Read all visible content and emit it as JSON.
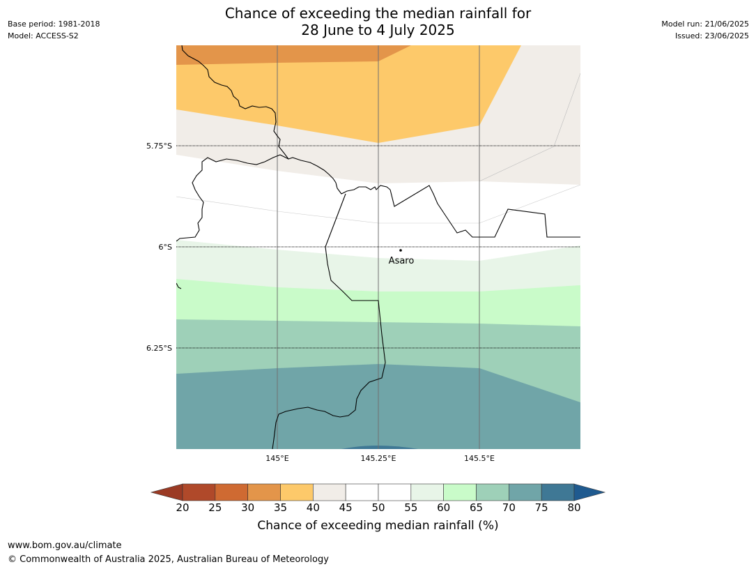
{
  "header": {
    "title_line1": "Chance of exceeding the median rainfall for",
    "title_line2": "28 June to 4 July 2025",
    "base_period": "Base period: 1981-2018",
    "model": "Model: ACCESS-S2",
    "model_run": "Model run: 21/06/2025",
    "issued": "Issued: 23/06/2025"
  },
  "map": {
    "lat_labels": [
      "5.75°S",
      "6°S",
      "6.25°S"
    ],
    "lon_labels": [
      "145°E",
      "145.25°E",
      "145.5°E"
    ],
    "place": "Asaro"
  },
  "colorbar": {
    "ticks": [
      "20",
      "25",
      "30",
      "35",
      "40",
      "45",
      "50",
      "55",
      "60",
      "65",
      "70",
      "75",
      "80"
    ],
    "colors": [
      "#b0492a",
      "#cf6a32",
      "#e3954a",
      "#fdc96a",
      "#f1ede8",
      "#ffffff",
      "#ffffff",
      "#e8f5e8",
      "#c9fbc9",
      "#9ed0b8",
      "#70a5a8",
      "#3f7895"
    ],
    "under_color": "#9b3a24",
    "over_color": "#1f5a8f",
    "label": "Chance of exceeding median rainfall (%)"
  },
  "footer": {
    "url": "www.bom.gov.au/climate",
    "copyright": "© Commonwealth of Australia 2025, Australian Bureau of Meteorology"
  }
}
